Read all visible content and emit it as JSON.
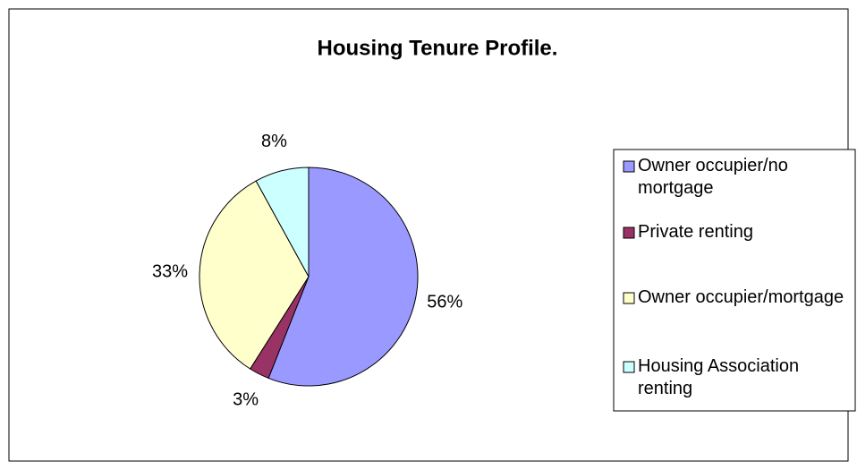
{
  "chart_data": {
    "type": "pie",
    "title": "Housing Tenure Profile.",
    "categories": [
      "Owner occupier/no mortgage",
      "Private renting",
      "Owner occupier/mortgage",
      "Housing Association renting"
    ],
    "values": [
      56,
      3,
      33,
      8
    ],
    "value_labels": [
      "56%",
      "3%",
      "33%",
      "8%"
    ],
    "colors": [
      "#9999ff",
      "#993366",
      "#ffffcc",
      "#ccffff"
    ],
    "legend": "right"
  }
}
